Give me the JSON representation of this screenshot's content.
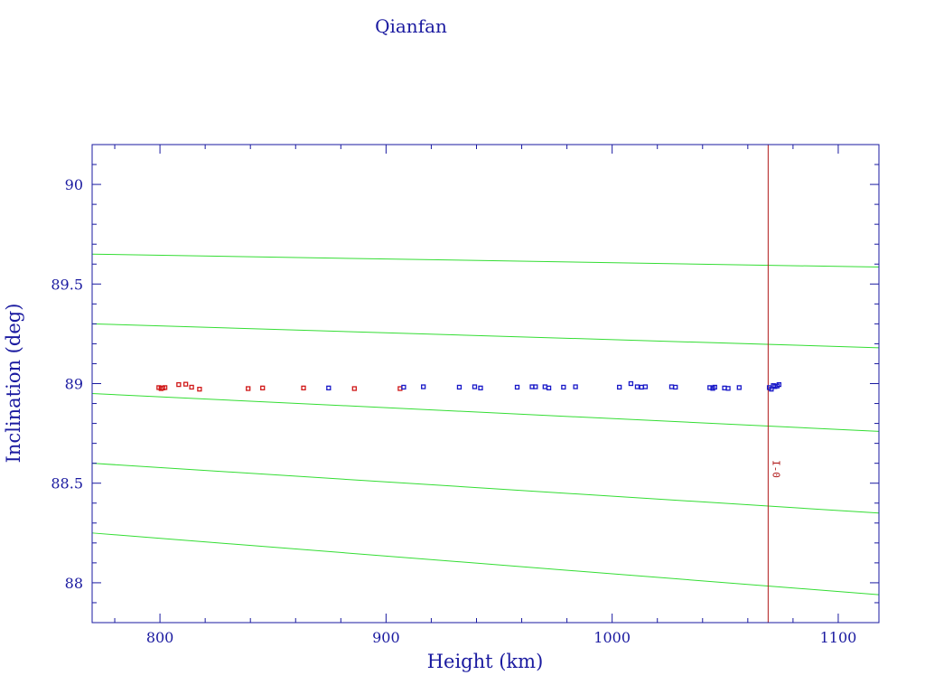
{
  "chart_data": {
    "type": "scatter",
    "title": "Qianfan",
    "xlabel": "Height (km)",
    "ylabel": "Inclination (deg)",
    "xlim": [
      770,
      1118
    ],
    "ylim": [
      87.8,
      90.2
    ],
    "xticks": [
      800,
      900,
      1000,
      1100
    ],
    "yticks": [
      88,
      88.5,
      89,
      89.5,
      90
    ],
    "xtick_labels": [
      "800",
      "900",
      "1000",
      "1100"
    ],
    "ytick_labels": [
      "88",
      "88.5",
      "89",
      "89.5",
      "90"
    ],
    "colors": {
      "axis": "#1a1aa0",
      "series_red": "#d01818",
      "series_blue": "#1818c8",
      "guides": "#33dd33",
      "reference": "#b01818"
    },
    "series": [
      {
        "color": "#d01818",
        "points": [
          [
            799.5,
            88.98
          ],
          [
            800.5,
            88.975
          ],
          [
            801.3,
            88.978
          ],
          [
            802.2,
            88.98
          ],
          [
            808.3,
            88.995
          ],
          [
            811.4,
            88.997
          ],
          [
            814.0,
            88.982
          ],
          [
            817.5,
            88.972
          ],
          [
            839.0,
            88.975
          ],
          [
            845.4,
            88.978
          ],
          [
            863.5,
            88.978
          ],
          [
            886.0,
            88.975
          ],
          [
            906.2,
            88.975
          ]
        ]
      },
      {
        "color": "#1818c8",
        "points": [
          [
            874.6,
            88.978
          ],
          [
            907.8,
            88.982
          ],
          [
            916.5,
            88.984
          ],
          [
            932.4,
            88.982
          ],
          [
            939.2,
            88.984
          ],
          [
            941.8,
            88.978
          ],
          [
            958.0,
            88.982
          ],
          [
            964.6,
            88.984
          ],
          [
            966.1,
            88.984
          ],
          [
            970.3,
            88.984
          ],
          [
            972.0,
            88.978
          ],
          [
            978.5,
            88.982
          ],
          [
            983.8,
            88.984
          ],
          [
            1003.2,
            88.982
          ],
          [
            1008.3,
            89.0
          ],
          [
            1011.1,
            88.984
          ],
          [
            1013.0,
            88.982
          ],
          [
            1014.7,
            88.984
          ],
          [
            1026.3,
            88.984
          ],
          [
            1028.0,
            88.982
          ],
          [
            1043.2,
            88.98
          ],
          [
            1044.5,
            88.976
          ],
          [
            1045.4,
            88.982
          ],
          [
            1049.7,
            88.978
          ],
          [
            1051.3,
            88.976
          ],
          [
            1056.2,
            88.98
          ],
          [
            1069.5,
            88.98
          ],
          [
            1070.4,
            88.972
          ],
          [
            1071.3,
            88.99
          ],
          [
            1072.0,
            88.985
          ],
          [
            1073.0,
            88.988
          ],
          [
            1073.8,
            88.995
          ]
        ]
      }
    ],
    "guide_lines": [
      [
        [
          770,
          89.65
        ],
        [
          1118,
          89.585
        ]
      ],
      [
        [
          770,
          89.3
        ],
        [
          1118,
          89.18
        ]
      ],
      [
        [
          770,
          88.95
        ],
        [
          1118,
          88.76
        ]
      ],
      [
        [
          770,
          88.6
        ],
        [
          1118,
          88.35
        ]
      ],
      [
        [
          770,
          88.25
        ],
        [
          1118,
          87.94
        ]
      ]
    ],
    "reference_line": {
      "x": 1069,
      "label": "I-0"
    },
    "grid": false,
    "legend": "none"
  }
}
